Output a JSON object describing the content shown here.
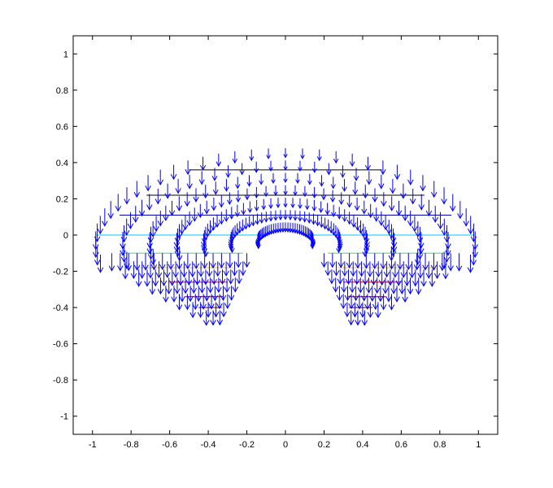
{
  "chart_data": {
    "type": "quiver",
    "title": "",
    "xlabel": "",
    "ylabel": "",
    "xlim": [
      -1.1,
      1.1
    ],
    "ylim": [
      -1.1,
      1.1
    ],
    "x_ticks": [
      -1,
      -0.8,
      -0.6,
      -0.4,
      -0.2,
      0,
      0.2,
      0.4,
      0.6,
      0.8,
      1
    ],
    "y_ticks": [
      -1,
      -0.8,
      -0.6,
      -0.4,
      -0.2,
      0,
      0.2,
      0.4,
      0.6,
      0.8,
      1
    ],
    "x_tick_labels": [
      "-1",
      "-0.8",
      "-0.6",
      "-0.4",
      "-0.2",
      "0",
      "0.2",
      "0.4",
      "0.6",
      "0.8",
      "1"
    ],
    "y_tick_labels": [
      "-1",
      "-0.8",
      "-0.6",
      "-0.4",
      "-0.2",
      "0",
      "0.2",
      "0.4",
      "0.6",
      "0.8",
      "1"
    ],
    "grid": false,
    "legend": "none",
    "vector_field": {
      "color": "#0000ff",
      "direction": "down",
      "radial_angle_range_deg": [
        -13,
        193
      ],
      "angle_steps": 40,
      "outer_radius": 0.48,
      "radial_range": [
        0.07,
        0.48
      ],
      "radial_steps": 7,
      "arrow_length_range": [
        0.025,
        0.1
      ],
      "lobes": [
        {
          "side": "left",
          "tip": [
            -0.35,
            -0.55
          ],
          "center_x": -0.44
        },
        {
          "side": "right",
          "tip": [
            0.35,
            -0.55
          ],
          "center_x": 0.44
        }
      ]
    },
    "contour_lines": [
      {
        "y": 0.36,
        "x": [
          -0.5,
          0.5
        ],
        "color": "#000000"
      },
      {
        "y": 0.22,
        "x": [
          -0.72,
          0.72
        ],
        "color": "#000000"
      },
      {
        "y": 0.11,
        "x": [
          -0.86,
          0.86
        ],
        "color": "#0000aa"
      },
      {
        "y": 0.0,
        "x": [
          -0.98,
          -0.1
        ],
        "color": "#00c8ff"
      },
      {
        "y": 0.0,
        "x": [
          0.1,
          0.98
        ],
        "color": "#00c8ff"
      },
      {
        "y": -0.1,
        "x": [
          -0.84,
          -0.22
        ],
        "color": "#3cdc78"
      },
      {
        "y": -0.1,
        "x": [
          0.22,
          0.84
        ],
        "color": "#3cdc78"
      },
      {
        "y": -0.18,
        "x": [
          -0.78,
          -0.27
        ],
        "color": "#ffc000"
      },
      {
        "y": -0.18,
        "x": [
          0.27,
          0.78
        ],
        "color": "#ffc000"
      },
      {
        "y": -0.26,
        "x": [
          -0.6,
          -0.3
        ],
        "color": "#d80000"
      },
      {
        "y": -0.26,
        "x": [
          0.3,
          0.6
        ],
        "color": "#d80000"
      },
      {
        "y": -0.34,
        "x": [
          -0.52,
          -0.32
        ],
        "color": "#800000"
      },
      {
        "y": -0.34,
        "x": [
          0.32,
          0.52
        ],
        "color": "#800000"
      },
      {
        "y": -0.4,
        "x": [
          -0.45,
          -0.33
        ],
        "color": "#600000"
      },
      {
        "y": -0.4,
        "x": [
          0.33,
          0.45
        ],
        "color": "#600000"
      }
    ]
  }
}
